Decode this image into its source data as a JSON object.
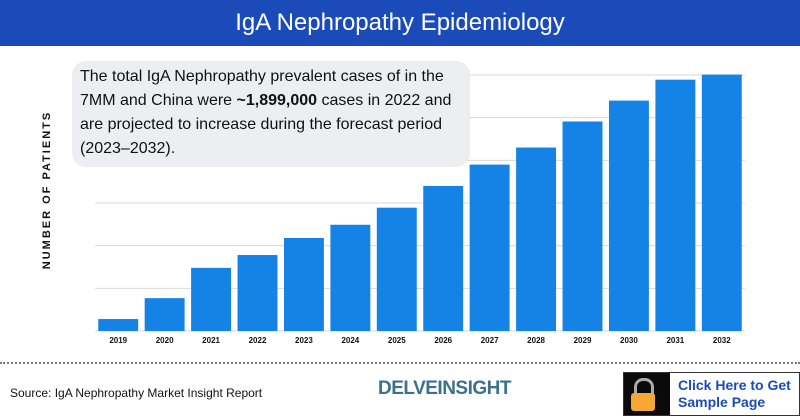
{
  "header": {
    "title": "IgA Nephropathy Epidemiology"
  },
  "callout": {
    "pre": "The total IgA Nephropathy prevalent cases of in the 7MM and China were ",
    "bold": "~1,899,000",
    "post": " cases in 2022 and are projected to increase during the forecast period (2023–2032)."
  },
  "footer": {
    "source": "Source: IgA Nephropathy Market Insight Report",
    "logo": "DELVEINSIGHT",
    "cta_line1": "Click Here to Get",
    "cta_line2": "Sample Page"
  },
  "colors": {
    "header": "#1a4bb8",
    "bar": "#1583e6",
    "cta_text": "#1a4bb8",
    "lock": "#f7a833"
  },
  "chart_data": {
    "type": "bar",
    "title": "IgA Nephropathy Epidemiology",
    "ylabel": "NUMBER OF PATIENTS",
    "xlabel": "",
    "categories": [
      "2019",
      "2020",
      "2021",
      "2022",
      "2023",
      "2024",
      "2025",
      "2026",
      "2027",
      "2028",
      "2029",
      "2030",
      "2031",
      "2032"
    ],
    "values": [
      0.28,
      0.77,
      1.48,
      1.78,
      2.18,
      2.49,
      2.89,
      3.4,
      3.9,
      4.3,
      4.91,
      5.4,
      5.89,
      6.01
    ],
    "value_units": "gridline steps (no y tick labels shown)",
    "ylim": [
      0,
      6
    ],
    "grid": true,
    "legend": "none"
  }
}
